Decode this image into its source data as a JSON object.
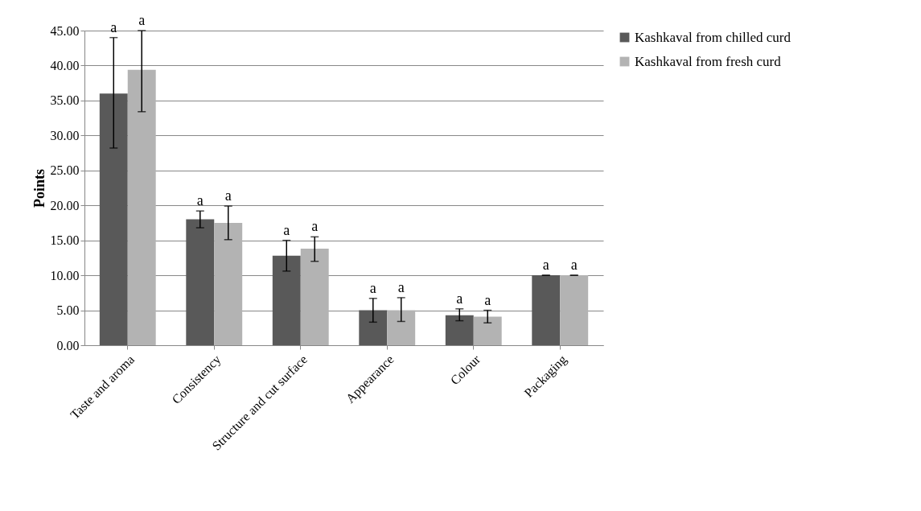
{
  "chart_data": {
    "type": "bar",
    "ylabel": "Points",
    "categories": [
      "Taste and aroma",
      "Consistency",
      "Structure and cut surface",
      "Appearance",
      "Colour",
      "Packaging"
    ],
    "series": [
      {
        "name": "Kashkaval from chilled curd",
        "color": "#595959",
        "values": [
          36.0,
          18.0,
          12.8,
          5.0,
          4.3,
          10.0
        ],
        "errors": [
          [
            28.2,
            44.0
          ],
          [
            16.8,
            19.2
          ],
          [
            10.6,
            15.0
          ],
          [
            3.3,
            6.7
          ],
          [
            3.5,
            5.2
          ],
          0
        ]
      },
      {
        "name": "Kashkaval from fresh curd",
        "color": "#b3b3b3",
        "values": [
          39.4,
          17.5,
          13.8,
          5.0,
          4.1,
          10.0
        ],
        "errors": [
          [
            33.4,
            45.0
          ],
          [
            15.1,
            19.9
          ],
          [
            12.0,
            15.5
          ],
          [
            3.4,
            6.8
          ],
          [
            3.2,
            5.0
          ],
          0
        ]
      }
    ],
    "ylim": [
      0,
      45
    ],
    "yticks": [
      {
        "value": 0,
        "label": "0.00"
      },
      {
        "value": 5,
        "label": "5.00"
      },
      {
        "value": 10,
        "label": "10.00"
      },
      {
        "value": 15,
        "label": "15.00"
      },
      {
        "value": 20,
        "label": "20.00"
      },
      {
        "value": 25,
        "label": "25.00"
      },
      {
        "value": 30,
        "label": "30.00"
      },
      {
        "value": 35,
        "label": "35.00"
      },
      {
        "value": 40,
        "label": "40.00"
      },
      {
        "value": 45,
        "label": "45.00"
      }
    ],
    "grid": "y",
    "legend": "right",
    "annotations": [
      "a",
      "a",
      "a",
      "a",
      "a",
      "a",
      "a",
      "a",
      "a",
      "a",
      "a",
      "a"
    ]
  }
}
